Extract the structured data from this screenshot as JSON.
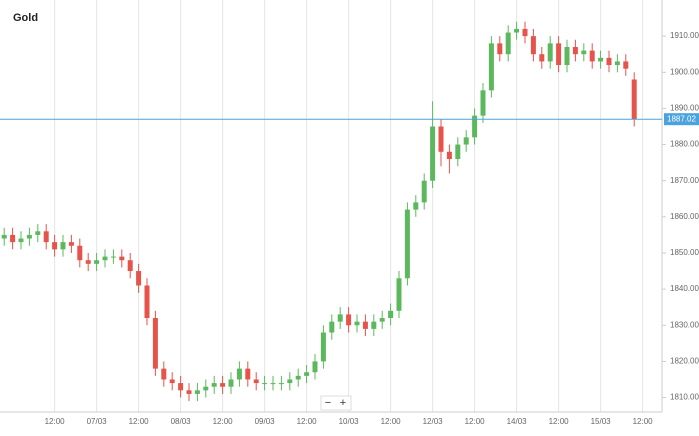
{
  "chart_data": {
    "type": "candlestick",
    "title": "Gold",
    "categories": [
      null,
      null,
      null,
      null,
      null,
      null,
      "12:00",
      null,
      null,
      null,
      null,
      "07/03",
      null,
      null,
      null,
      null,
      "12:00",
      null,
      null,
      null,
      null,
      "08/03",
      null,
      null,
      null,
      null,
      "12:00",
      null,
      null,
      null,
      null,
      "09/03",
      null,
      null,
      null,
      null,
      "12:00",
      null,
      null,
      null,
      null,
      "10/03",
      null,
      null,
      null,
      null,
      "12:00",
      null,
      null,
      null,
      null,
      "12/03",
      null,
      null,
      null,
      null,
      "12:00",
      null,
      null,
      null,
      null,
      "14/03",
      null,
      null,
      null,
      null,
      "12:00",
      null,
      null,
      null,
      null,
      "15/03",
      null,
      null,
      null,
      null,
      "12:00"
    ],
    "open": [
      1854,
      1855,
      1853,
      1854,
      1855,
      1856,
      1853,
      1851,
      1853,
      1852,
      1848,
      1847,
      1848,
      1849,
      1849,
      1848,
      1845,
      1841,
      1832,
      1818,
      1815,
      1814,
      1812,
      1811,
      1812,
      1813,
      1814,
      1813,
      1815,
      1818,
      1815,
      1814,
      1814,
      1814,
      1814,
      1815,
      1816,
      1817,
      1820,
      1828,
      1831,
      1833,
      1830,
      1831,
      1829,
      1831,
      1832,
      1834,
      1843,
      1862,
      1864,
      1870,
      1885,
      1878,
      1876,
      1880,
      1882,
      1888,
      1895,
      1908,
      1905,
      1911,
      1912,
      1910,
      1905,
      1903,
      1908,
      1902,
      1907,
      1905,
      1906,
      1903,
      1904,
      1902,
      1903,
      1898,
      null
    ],
    "high": [
      1857,
      1857,
      1856,
      1857,
      1858,
      1858,
      1855,
      1855,
      1855,
      1854,
      1850,
      1850,
      1851,
      1851,
      1851,
      1850,
      1847,
      1843,
      1834,
      1820,
      1817,
      1816,
      1814,
      1814,
      1815,
      1816,
      1816,
      1817,
      1820,
      1820,
      1817,
      1816,
      1816,
      1816,
      1817,
      1818,
      1819,
      1822,
      1830,
      1833,
      1835,
      1835,
      1833,
      1833,
      1833,
      1834,
      1836,
      1845,
      1864,
      1866,
      1872,
      1892,
      1887,
      1880,
      1882,
      1884,
      1890,
      1897,
      1910,
      1910,
      1913,
      1914,
      1914,
      1912,
      1907,
      1910,
      1910,
      1909,
      1909,
      1908,
      1908,
      1906,
      1906,
      1905,
      1905,
      1900,
      null
    ],
    "low": [
      1852,
      1851,
      1851,
      1852,
      1853,
      1851,
      1849,
      1849,
      1850,
      1846,
      1845,
      1845,
      1846,
      1847,
      1846,
      1843,
      1839,
      1830,
      1816,
      1813,
      1812,
      1810,
      1809,
      1809,
      1810,
      1811,
      1811,
      1811,
      1813,
      1813,
      1812,
      1812,
      1812,
      1812,
      1812,
      1813,
      1814,
      1815,
      1818,
      1826,
      1829,
      1828,
      1828,
      1827,
      1827,
      1829,
      1830,
      1832,
      1841,
      1860,
      1862,
      1868,
      1874,
      1872,
      1874,
      1878,
      1880,
      1886,
      1893,
      1903,
      1903,
      1909,
      1908,
      1903,
      1901,
      1901,
      1900,
      1900,
      1903,
      1903,
      1901,
      1901,
      1900,
      1900,
      1899,
      1885,
      null
    ],
    "close": [
      1855,
      1853,
      1854,
      1855,
      1856,
      1853,
      1851,
      1853,
      1852,
      1848,
      1847,
      1848,
      1849,
      1849,
      1848,
      1845,
      1841,
      1832,
      1818,
      1815,
      1814,
      1812,
      1811,
      1812,
      1813,
      1814,
      1813,
      1815,
      1818,
      1815,
      1814,
      1814,
      1814,
      1814,
      1815,
      1816,
      1817,
      1820,
      1828,
      1831,
      1833,
      1830,
      1831,
      1829,
      1831,
      1832,
      1834,
      1843,
      1862,
      1864,
      1870,
      1885,
      1878,
      1876,
      1880,
      1882,
      1888,
      1895,
      1908,
      1905,
      1911,
      1912,
      1910,
      1905,
      1903,
      1908,
      1902,
      1907,
      1905,
      1906,
      1903,
      1904,
      1902,
      1903,
      1901,
      1887,
      null
    ],
    "up_color": "#5cb85c",
    "down_color": "#e5534b",
    "ylim": [
      1806,
      1920
    ],
    "yticks": [
      {
        "value": 1810,
        "label": "1810.00"
      },
      {
        "value": 1820,
        "label": "1820.00"
      },
      {
        "value": 1830,
        "label": "1830.00"
      },
      {
        "value": 1840,
        "label": "1840.00"
      },
      {
        "value": 1850,
        "label": "1850.00"
      },
      {
        "value": 1860,
        "label": "1860.00"
      },
      {
        "value": 1870,
        "label": "1870.00"
      },
      {
        "value": 1880,
        "label": "1880.00"
      },
      {
        "value": 1890,
        "label": "1890.00"
      },
      {
        "value": 1900,
        "label": "1900.00"
      },
      {
        "value": 1910,
        "label": "1910.00"
      }
    ],
    "current_price": 1887.02,
    "current_color": "#4aa3df",
    "grid": "x"
  },
  "controls": [
    "−",
    "+"
  ]
}
